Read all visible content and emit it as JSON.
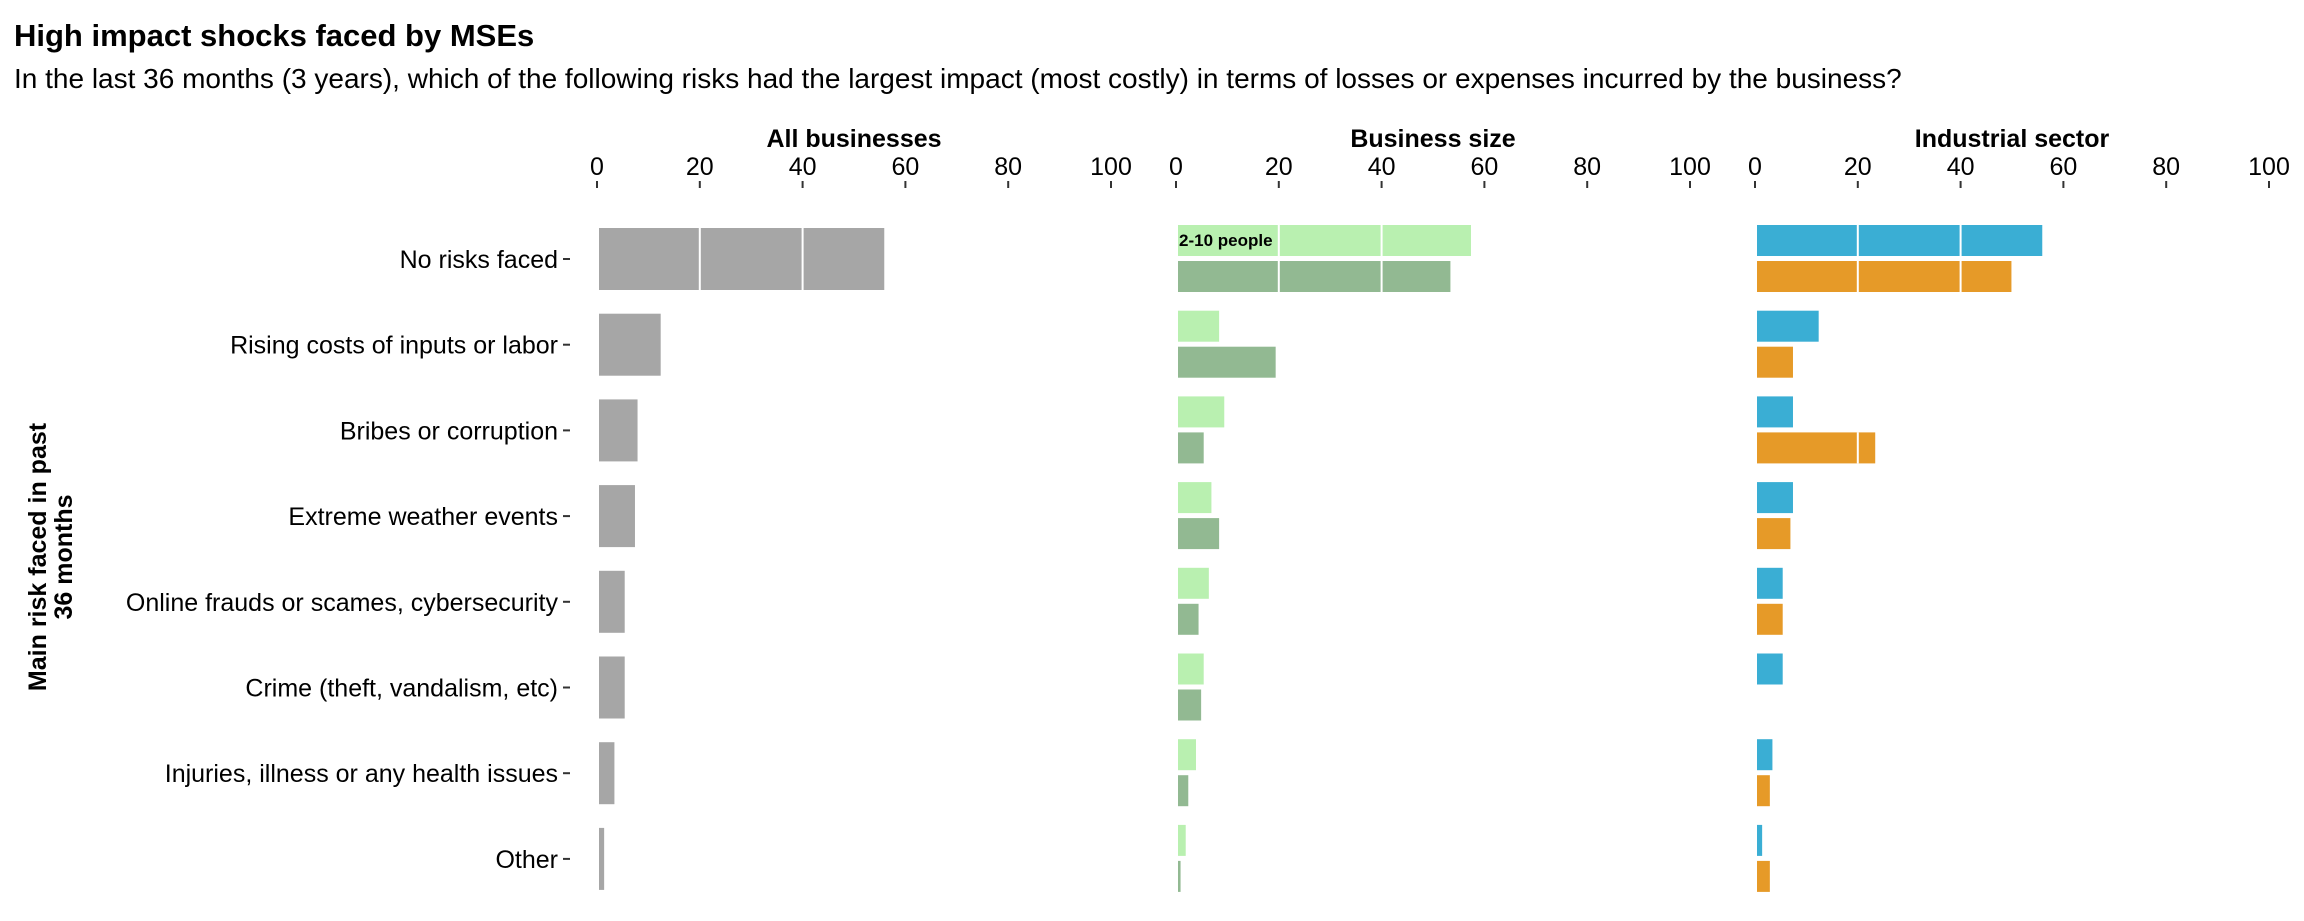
{
  "title": "High impact shocks faced by MSEs",
  "subtitle": "In the last 36 months (3 years), which of the following risks had the largest impact (most costly) in terms of losses or expenses incurred by the business?",
  "chart_data": {
    "type": "bar",
    "orientation": "horizontal",
    "ylabel": "Main risk faced in past 36 months",
    "categories": [
      "No risks faced",
      "Rising costs of inputs or labor",
      "Bribes or corruption",
      "Extreme weather events",
      "Online frauds or scames, cybersecurity",
      "Crime (theft, vandalism, etc)",
      "Injuries, illness or any health issues",
      "Other"
    ],
    "xlim": [
      0,
      100
    ],
    "xticks": [
      "0",
      "20",
      "40",
      "60",
      "80",
      "100"
    ],
    "gridlines": "white vertical lines at 20, 40 inside bars",
    "panels": [
      {
        "title": "All businesses",
        "series": [
          {
            "color": "#a6a6a6",
            "values": [
              55.5,
              12,
              7.5,
              7,
              5,
              5,
              3,
              1
            ]
          }
        ]
      },
      {
        "title": "Business size",
        "series": [
          {
            "name": "2-10 people",
            "color": "#b9f0b0",
            "values": [
              57,
              8,
              9,
              6.5,
              6,
              5,
              3.5,
              1.5
            ]
          },
          {
            "color": "#92b992",
            "values": [
              53,
              19,
              5,
              8,
              4,
              4.5,
              2,
              0.5
            ]
          }
        ]
      },
      {
        "title": "Industrial sector",
        "series": [
          {
            "color": "#3aaed4",
            "values": [
              55.5,
              12,
              7,
              7,
              5,
              5,
              3,
              1
            ]
          },
          {
            "color": "#e69a28",
            "values": [
              49.5,
              7,
              23,
              6.5,
              5,
              0,
              2.5,
              2.5
            ]
          }
        ]
      }
    ]
  }
}
